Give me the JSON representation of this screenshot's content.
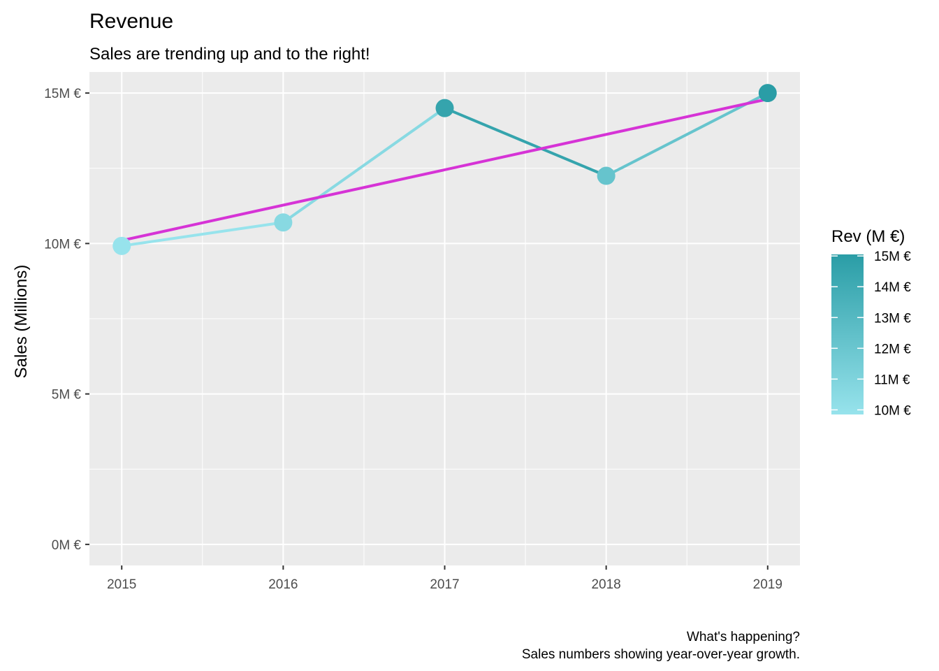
{
  "chart_data": {
    "type": "line",
    "title": "Revenue",
    "subtitle": "Sales are trending up and to the right!",
    "xlabel": "",
    "ylabel": "Sales (Millions)",
    "caption": [
      "What's happening?",
      "Sales numbers showing year-over-year growth."
    ],
    "x": [
      2015,
      2016,
      2017,
      2018,
      2019
    ],
    "x_tick_labels": [
      "2015",
      "2016",
      "2017",
      "2018",
      "2019"
    ],
    "y": [
      9.92,
      10.7,
      14.5,
      12.25,
      15.0
    ],
    "y_unit": "M €",
    "ylim": [
      -0.7,
      15.7
    ],
    "y_ticks": [
      0,
      5,
      10,
      15
    ],
    "y_tick_labels": [
      "0M €",
      "5M €",
      "10M €",
      "15M €"
    ],
    "trend_line": {
      "x": [
        2015,
        2019
      ],
      "y": [
        10.1,
        14.8
      ],
      "color": "#d633d6"
    },
    "color_scale": {
      "title": "Rev (M €)",
      "low": 10,
      "high": 15,
      "low_color": "#97e3ec",
      "high_color": "#2a9da6",
      "tick_values": [
        10,
        11,
        12,
        13,
        14,
        15
      ],
      "tick_labels": [
        "10M €",
        "11M €",
        "12M €",
        "13M €",
        "14M €",
        "15M €"
      ]
    },
    "grid": true,
    "panel_background": "#ebebeb",
    "legend_position": "right"
  }
}
